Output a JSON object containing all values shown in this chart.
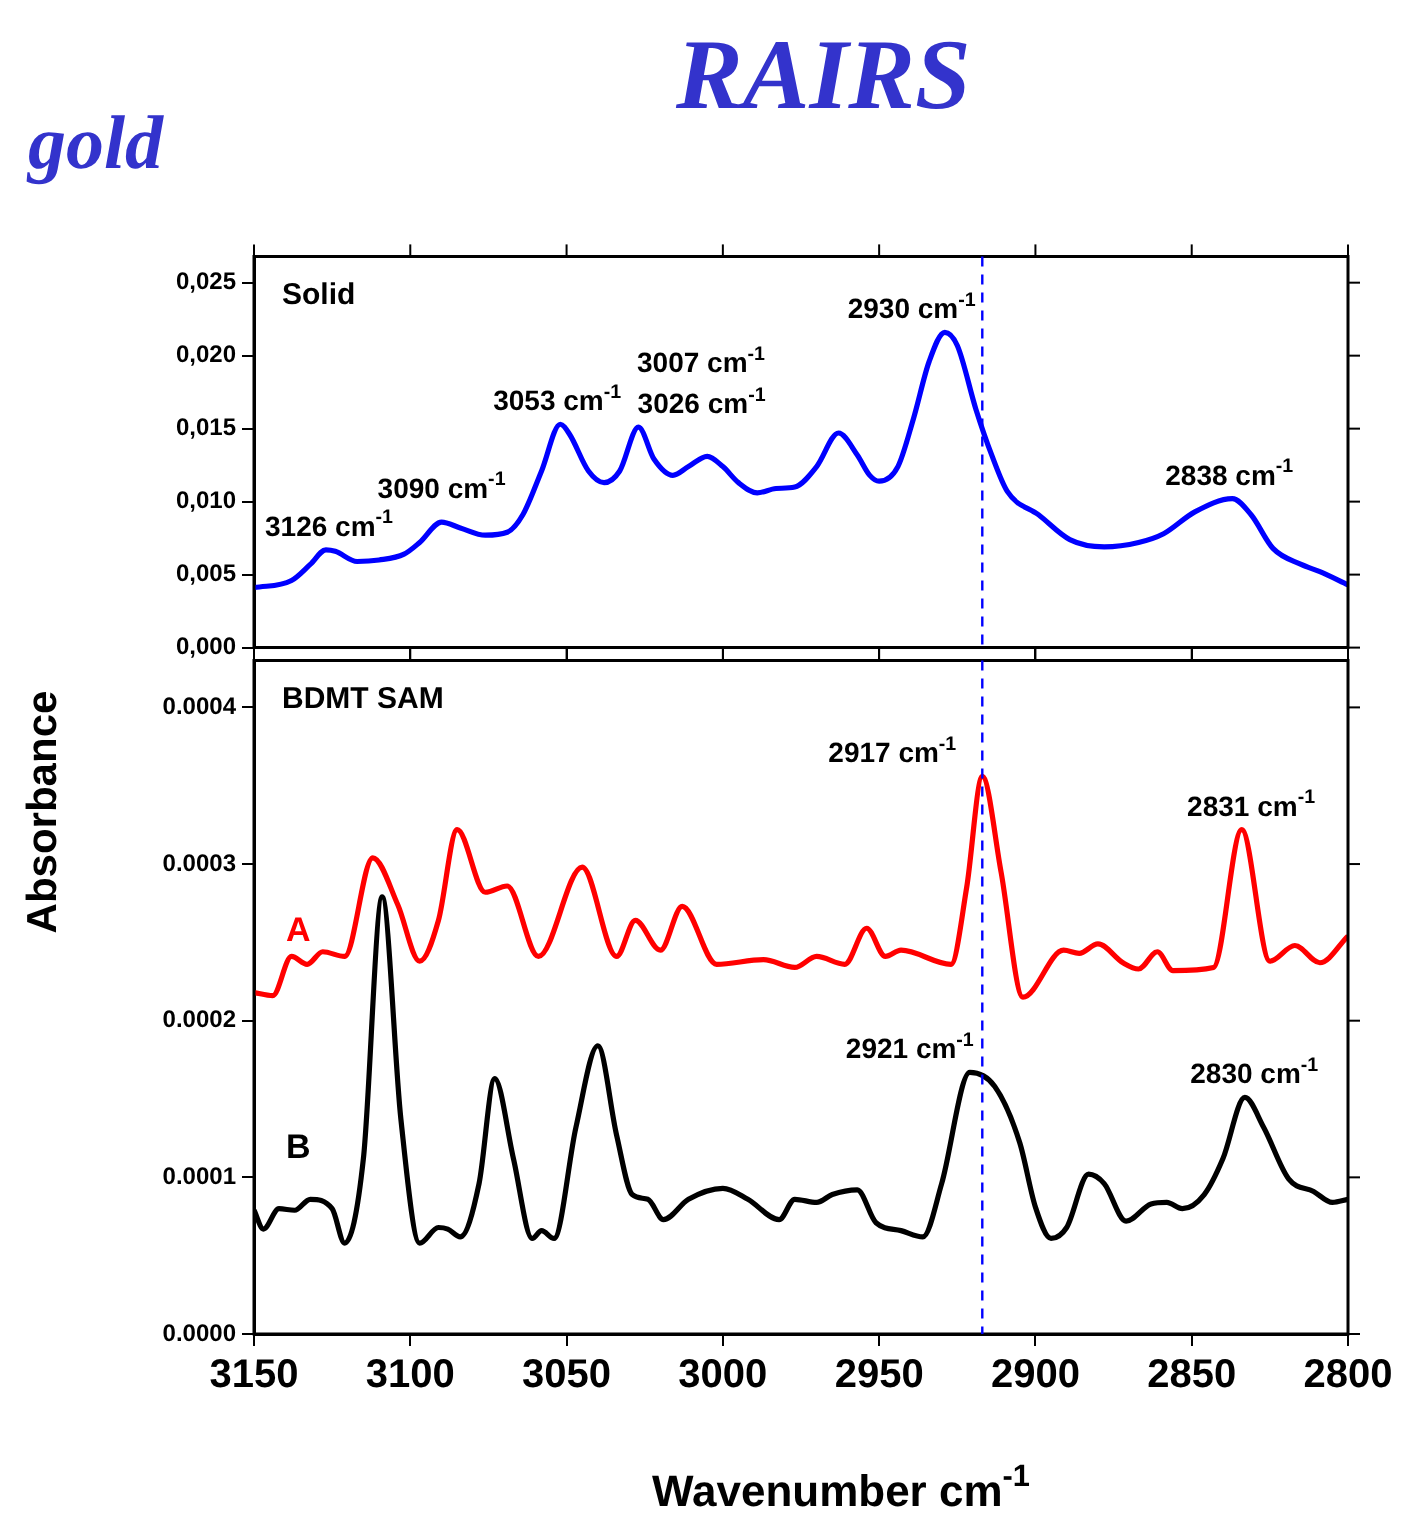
{
  "chart_data": [
    {
      "type": "line",
      "title": "RAIRS",
      "subtitle": "gold",
      "ylabel": "Absorbance",
      "xlim": [
        3150,
        2800
      ],
      "xticks": [
        3150,
        3100,
        3050,
        3000,
        2950,
        2900,
        2850,
        2800
      ],
      "ylim": [
        0,
        0.0268
      ],
      "yticks": [
        {
          "value": 0,
          "label": "0,000"
        },
        {
          "value": 0.005,
          "label": "0,005"
        },
        {
          "value": 0.01,
          "label": "0,010"
        },
        {
          "value": 0.015,
          "label": "0,015"
        },
        {
          "value": 0.02,
          "label": "0,020"
        },
        {
          "value": 0.025,
          "label": "0,025"
        }
      ],
      "tick_labels": "y",
      "grid": false,
      "legend": false,
      "ref_lines": [
        {
          "axis": "x",
          "value": 2917,
          "color": "#0000ff",
          "line_style": "dashed"
        }
      ],
      "annotations": [
        "Solid",
        {
          "text": "3126 cm$^{-1}$",
          "x": 3126,
          "y": 0.0067
        },
        {
          "text": "3090 cm$^{-1}$",
          "x": 3090,
          "y": 0.0086
        },
        {
          "text": "3053 cm$^{-1}$",
          "x": 3053,
          "y": 0.0153
        },
        {
          "text": "3026 cm$^{-1}$",
          "x": 3026,
          "y": 0.0151
        },
        {
          "text": "3007 cm$^{-1}$",
          "x": 3007,
          "y": 0.0131
        },
        {
          "text": "2930 cm$^{-1}$",
          "x": 2930,
          "y": 0.0216
        },
        {
          "text": "2838 cm$^{-1}$",
          "x": 2838,
          "y": 0.0102
        }
      ],
      "series": [
        {
          "color": "#0000ff",
          "x": [
            3150,
            3138,
            3132,
            3127,
            3124,
            3117,
            3110,
            3102,
            3097,
            3090,
            3084,
            3076,
            3069,
            3064,
            3058,
            3052,
            3049,
            3043,
            3038,
            3033,
            3027,
            3022,
            3016,
            3011,
            3005,
            3000,
            2995,
            2989,
            2983,
            2977,
            2970,
            2963,
            2957,
            2953,
            2950,
            2944,
            2939,
            2934,
            2929,
            2925,
            2919,
            2914,
            2909,
            2899,
            2889,
            2878,
            2867,
            2859,
            2849,
            2837,
            2831,
            2824,
            2815,
            2809,
            2800
          ],
          "values": [
            0.0041,
            0.0046,
            0.0057,
            0.0067,
            0.0066,
            0.0059,
            0.006,
            0.0064,
            0.0072,
            0.0086,
            0.0082,
            0.0077,
            0.0079,
            0.0091,
            0.0121,
            0.0153,
            0.0146,
            0.0121,
            0.0113,
            0.0121,
            0.0151,
            0.0129,
            0.0118,
            0.0124,
            0.0131,
            0.0124,
            0.0113,
            0.0106,
            0.0109,
            0.011,
            0.0124,
            0.0147,
            0.0132,
            0.0118,
            0.0114,
            0.0124,
            0.0157,
            0.0196,
            0.0216,
            0.0207,
            0.0163,
            0.0132,
            0.0107,
            0.0091,
            0.0074,
            0.0069,
            0.0072,
            0.0078,
            0.0093,
            0.0102,
            0.0091,
            0.0068,
            0.0057,
            0.0052,
            0.0043
          ]
        }
      ]
    },
    {
      "type": "line",
      "xlabel": "Wavenumber cm$^{-1}$",
      "xlim": [
        3150,
        2800
      ],
      "xticks": [
        3150,
        3100,
        3050,
        3000,
        2950,
        2900,
        2850,
        2800
      ],
      "ylim": [
        0,
        0.00043
      ],
      "yticks": [
        {
          "value": 0,
          "label": "0.0000"
        },
        {
          "value": 0.0001,
          "label": "0.0001"
        },
        {
          "value": 0.0002,
          "label": "0.0002"
        },
        {
          "value": 0.0003,
          "label": "0.0003"
        },
        {
          "value": 0.0004,
          "label": "0.0004"
        }
      ],
      "grid": false,
      "legend": false,
      "ref_lines": [
        {
          "axis": "x",
          "value": 2917,
          "color": "#0000ff",
          "line_style": "dashed"
        }
      ],
      "annotations": [
        "BDMT SAM",
        {
          "text": "2917 cm$^{-1}$",
          "x": 2917,
          "y": 0.000356
        },
        {
          "text": "2831 cm$^{-1}$",
          "x": 2831,
          "y": 0.000322
        },
        {
          "text": "2921 cm$^{-1}$",
          "x": 2921,
          "y": 0.000167
        },
        {
          "text": "2830 cm$^{-1}$",
          "x": 2830,
          "y": 0.000151
        }
      ],
      "series": [
        {
          "name": "A",
          "color": "#ff0000",
          "x": [
            3150,
            3144,
            3138,
            3133,
            3128,
            3121,
            3112,
            3104,
            3097,
            3091,
            3085,
            3076,
            3069,
            3059,
            3045,
            3034,
            3028,
            3020,
            3013,
            3002,
            2987,
            2977,
            2970,
            2961,
            2954,
            2948,
            2943,
            2927,
            2922,
            2917,
            2911,
            2904,
            2891,
            2886,
            2880,
            2872,
            2867,
            2861,
            2856,
            2843,
            2834,
            2825,
            2817,
            2809,
            2800
          ],
          "values": [
            0.000218,
            0.000216,
            0.000241,
            0.000236,
            0.000244,
            0.000241,
            0.000304,
            0.000274,
            0.000238,
            0.000264,
            0.000322,
            0.000282,
            0.000286,
            0.000241,
            0.000298,
            0.000241,
            0.000264,
            0.000245,
            0.000273,
            0.000236,
            0.000239,
            0.000234,
            0.000241,
            0.000236,
            0.000259,
            0.000241,
            0.000245,
            0.000236,
            0.000285,
            0.000356,
            0.000295,
            0.000215,
            0.000245,
            0.000243,
            0.000249,
            0.000237,
            0.000233,
            0.000244,
            0.000232,
            0.000234,
            0.000322,
            0.000238,
            0.000248,
            0.000237,
            0.000254
          ]
        },
        {
          "name": "B",
          "color": "#000000",
          "x": [
            3150,
            3147,
            3142,
            3137,
            3132,
            3125,
            3121,
            3115,
            3109,
            3103,
            3097,
            3091,
            3088,
            3084,
            3078,
            3073,
            3067,
            3061,
            3058,
            3054,
            3047,
            3040,
            3034,
            3029,
            3024,
            3019,
            3011,
            3000,
            2992,
            2982,
            2977,
            2970,
            2965,
            2957,
            2951,
            2943,
            2936,
            2930,
            2921,
            2913,
            2905,
            2900,
            2895,
            2890,
            2883,
            2878,
            2871,
            2863,
            2858,
            2853,
            2846,
            2840,
            2833,
            2827,
            2819,
            2811,
            2805,
            2800
          ],
          "values": [
            7.9e-05,
            6.7e-05,
            8e-05,
            7.9e-05,
            8.6e-05,
            8e-05,
            5.8e-05,
            0.000112,
            0.000279,
            0.000137,
            5.8e-05,
            6.8e-05,
            6.7e-05,
            6.2e-05,
            9.6e-05,
            0.000163,
            0.000112,
            6.1e-05,
            6.6e-05,
            6.1e-05,
            0.000132,
            0.000184,
            0.000127,
            8.9e-05,
            8.6e-05,
            7.3e-05,
            8.6e-05,
            9.3e-05,
            8.6e-05,
            7.3e-05,
            8.6e-05,
            8.4e-05,
            8.9e-05,
            9.2e-05,
            7.1e-05,
            6.6e-05,
            6.2e-05,
            9.6e-05,
            0.000167,
            0.000158,
            0.000122,
            8.1e-05,
            6.1e-05,
            6.8e-05,
            0.000102,
            9.6e-05,
            7.2e-05,
            8.3e-05,
            8.4e-05,
            8e-05,
            8.9e-05,
            0.000112,
            0.000151,
            0.000132,
            9.9e-05,
            9.1e-05,
            8.4e-05,
            8.6e-05
          ]
        }
      ]
    }
  ]
}
